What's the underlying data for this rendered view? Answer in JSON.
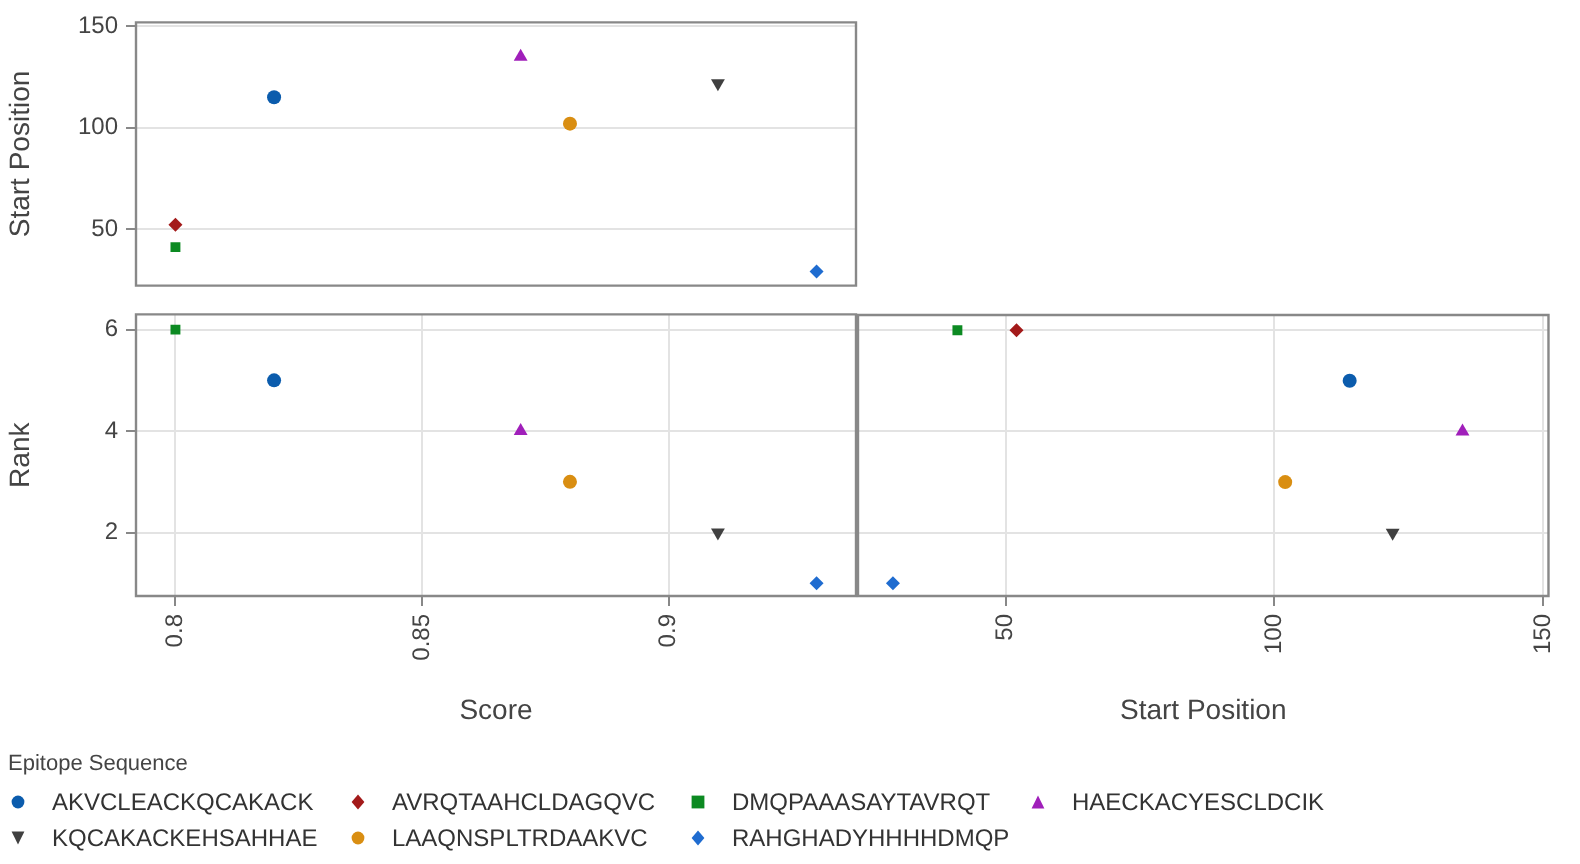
{
  "chart_data": [
    {
      "type": "scatter",
      "ylabel": "Start Position",
      "legend": "bottom",
      "legend_title": "Epitope Sequence",
      "grid": true,
      "tick_labels": "y",
      "xlim": [
        0.792,
        0.938
      ],
      "ylim": [
        22,
        152
      ],
      "yticks": [
        50,
        100,
        150
      ],
      "series": [
        {
          "name": "AKVCLEACKQCAKACK",
          "color": "#0b5cad",
          "marker": "circle",
          "x": [
            0.82
          ],
          "values": [
            115
          ]
        },
        {
          "name": "AVRQTAAHCLDAGQVC",
          "color": "#a31a1a",
          "marker": "diamond",
          "x": [
            0.8
          ],
          "values": [
            52
          ]
        },
        {
          "name": "DMQPAAASAYTAVRQT",
          "color": "#0c8a22",
          "marker": "square",
          "x": [
            0.8
          ],
          "values": [
            41
          ]
        },
        {
          "name": "HAECKACYESCLDCIK",
          "color": "#a01fba",
          "marker": "triangle",
          "x": [
            0.87
          ],
          "values": [
            135
          ]
        },
        {
          "name": "KQCAKACKEHSAHHAE",
          "color": "#404040",
          "marker": "triangle-down",
          "x": [
            0.91
          ],
          "values": [
            122
          ]
        },
        {
          "name": "LAAQNSPLTRDAAKVC",
          "color": "#d98e12",
          "marker": "circle",
          "x": [
            0.88
          ],
          "values": [
            102
          ]
        },
        {
          "name": "RAHGHADYHHHHDMQP",
          "color": "#1f6cd0",
          "marker": "diamond",
          "x": [
            0.93
          ],
          "values": [
            29
          ]
        }
      ]
    },
    {
      "type": "scatter",
      "xlabel": "Score",
      "ylabel": "Rank",
      "grid": true,
      "xlim": [
        0.792,
        0.938
      ],
      "xticks": [
        0.8,
        0.85,
        0.9
      ],
      "ylim": [
        0.75,
        6.3
      ],
      "yticks": [
        2,
        4,
        6
      ],
      "series": [
        {
          "color": "#0b5cad",
          "marker": "circle",
          "x": [
            0.82
          ],
          "values": [
            5
          ]
        },
        {
          "color": "#a31a1a",
          "marker": "diamond",
          "x": [
            null
          ],
          "values": [
            null
          ]
        },
        {
          "color": "#0c8a22",
          "marker": "square",
          "x": [
            0.8
          ],
          "values": [
            6
          ]
        },
        {
          "color": "#a01fba",
          "marker": "triangle",
          "x": [
            0.87
          ],
          "values": [
            4
          ]
        },
        {
          "color": "#404040",
          "marker": "triangle-down",
          "x": [
            0.91
          ],
          "values": [
            2
          ]
        },
        {
          "color": "#d98e12",
          "marker": "circle",
          "x": [
            0.88
          ],
          "values": [
            3
          ]
        },
        {
          "color": "#1f6cd0",
          "marker": "diamond",
          "x": [
            0.93
          ],
          "values": [
            1
          ]
        }
      ]
    },
    {
      "type": "scatter",
      "xlabel": "Start Position",
      "grid": true,
      "tick_labels": "x",
      "xlim": [
        22.5,
        151
      ],
      "xticks": [
        50,
        100,
        150
      ],
      "ylim": [
        0.75,
        6.3
      ],
      "yticks": [
        2,
        4,
        6
      ],
      "series": [
        {
          "color": "#0b5cad",
          "marker": "circle",
          "x": [
            114
          ],
          "values": [
            5
          ]
        },
        {
          "color": "#a31a1a",
          "marker": "diamond",
          "x": [
            52
          ],
          "values": [
            6
          ]
        },
        {
          "color": "#0c8a22",
          "marker": "square",
          "x": [
            41
          ],
          "values": [
            6
          ]
        },
        {
          "color": "#a01fba",
          "marker": "triangle",
          "x": [
            135
          ],
          "values": [
            4
          ]
        },
        {
          "color": "#404040",
          "marker": "triangle-down",
          "x": [
            122
          ],
          "values": [
            2
          ]
        },
        {
          "color": "#d98e12",
          "marker": "circle",
          "x": [
            102
          ],
          "values": [
            3
          ]
        },
        {
          "color": "#1f6cd0",
          "marker": "diamond",
          "x": [
            29
          ],
          "values": [
            1
          ]
        }
      ]
    }
  ]
}
